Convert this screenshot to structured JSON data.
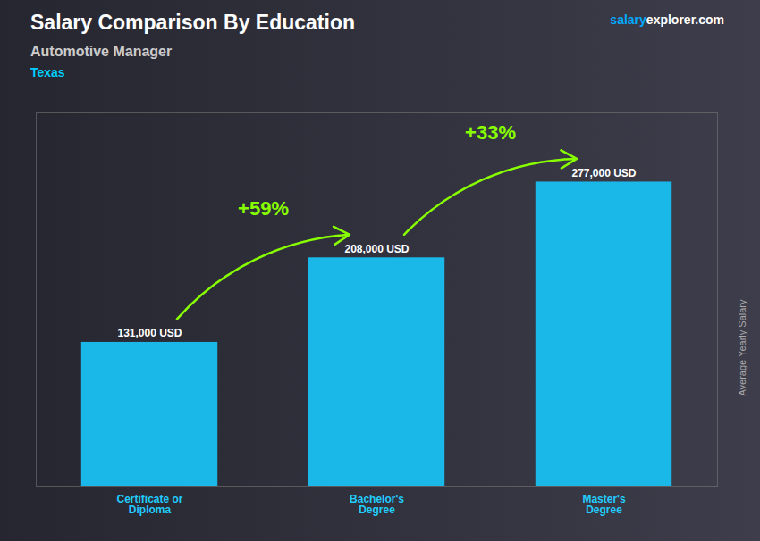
{
  "chart_data": {
    "type": "bar",
    "title": "Salary Comparison By Education",
    "subtitle": "Automotive Manager",
    "ylabel": "Average Yearly Salary",
    "categories": [
      "Certificate or\nDiploma",
      "Bachelor's\nDegree",
      "Master's\nDegree"
    ],
    "values": [
      131000,
      208000,
      277000
    ],
    "value_labels": [
      "131,000 USD",
      "208,000 USD",
      "277,000 USD"
    ],
    "data_labels": true,
    "color": "#1ab8e8",
    "ylim": [
      0,
      340000
    ],
    "tick_labels": "x",
    "grid": false,
    "annotations": [
      {
        "type": "note",
        "text": "Texas",
        "color": "#00ccff"
      },
      {
        "type": "watermark",
        "text": "salary",
        "color": "#00aaff"
      },
      {
        "type": "watermark",
        "text": "explorer.com",
        "color": "#ffffff"
      },
      {
        "type": "arrow",
        "text": "+59%",
        "color": "#88ff00"
      },
      {
        "type": "arrow",
        "text": "+33%",
        "color": "#88ff00"
      }
    ]
  }
}
